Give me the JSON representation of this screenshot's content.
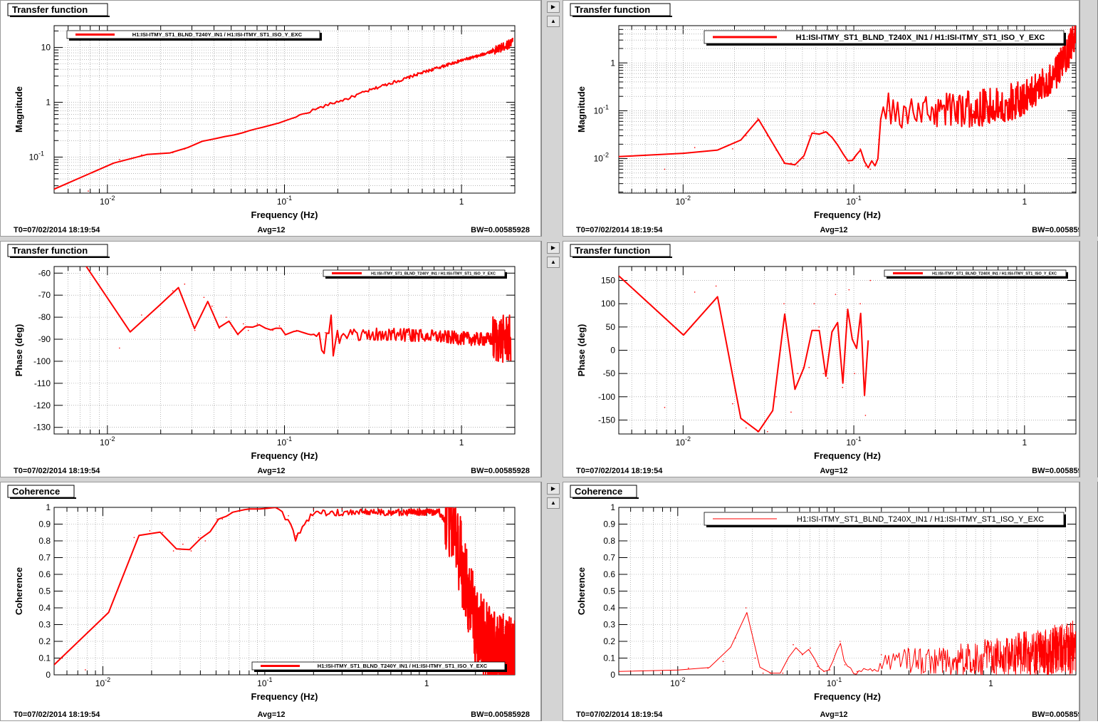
{
  "footer": {
    "t0": "T0=07/02/2014 18:19:54",
    "avg": "Avg=12",
    "bw": "BW=0.00585928"
  },
  "controls": {
    "up_arrow": "▲",
    "right_arrow": "▶"
  },
  "colors": {
    "trace": "#ff0000",
    "grid": "#8a8a8a",
    "background": "#ffffff",
    "divider": "#d4d4d4"
  },
  "panels": [
    {
      "id": "mag-left",
      "title": "Transfer function",
      "xlabel": "Frequency (Hz)",
      "ylabel": "Magnitude",
      "legend": "H1:ISI-ITMY_ST1_BLND_T240Y_IN1 / H1:ISI-ITMY_ST1_ISO_Y_EXC",
      "legend_size": "small",
      "legend_pos": "top-left",
      "xlog": true,
      "ylog": true,
      "xlim": [
        0.005,
        2.0
      ],
      "ylim": [
        0.022,
        25
      ],
      "xticks": [
        {
          "v": 0.01,
          "b": "10",
          "e": "-2"
        },
        {
          "v": 0.1,
          "b": "10",
          "e": "-1"
        },
        {
          "v": 1,
          "b": "1",
          "e": ""
        }
      ],
      "yticks": [
        {
          "v": 0.1,
          "b": "10",
          "e": "-1"
        },
        {
          "v": 1,
          "b": "1",
          "e": ""
        },
        {
          "v": 10,
          "b": "10",
          "e": ""
        }
      ],
      "lw": 2
    },
    {
      "id": "mag-right",
      "title": "Transfer function",
      "xlabel": "Frequency (Hz)",
      "ylabel": "Magnitude",
      "legend": "H1:ISI-ITMY_ST1_BLND_T240X_IN1 / H1:ISI-ITMY_ST1_ISO_Y_EXC",
      "legend_size": "normal",
      "legend_pos": "top-right",
      "xlog": true,
      "ylog": true,
      "xlim": [
        0.0042,
        2.0
      ],
      "ylim": [
        0.0019,
        6
      ],
      "xticks": [
        {
          "v": 0.01,
          "b": "10",
          "e": "-2"
        },
        {
          "v": 0.1,
          "b": "10",
          "e": "-1"
        },
        {
          "v": 1,
          "b": "1",
          "e": ""
        }
      ],
      "yticks": [
        {
          "v": 0.01,
          "b": "10",
          "e": "-2"
        },
        {
          "v": 0.1,
          "b": "10",
          "e": "-1"
        },
        {
          "v": 1,
          "b": "1",
          "e": ""
        }
      ],
      "lw": 2
    },
    {
      "id": "phase-left",
      "title": "Transfer function",
      "xlabel": "Frequency (Hz)",
      "ylabel": "Phase (deg)",
      "legend": "H1:ISI-ITMY_ST1_BLND_T240Y_IN1 / H1:ISI-ITMY_ST1_ISO_Y_EXC",
      "legend_size": "tiny",
      "legend_pos": "top-right",
      "xlog": true,
      "ylog": false,
      "xlim": [
        0.005,
        2.0
      ],
      "ylim": [
        -133,
        -57
      ],
      "xticks": [
        {
          "v": 0.01,
          "b": "10",
          "e": "-2"
        },
        {
          "v": 0.1,
          "b": "10",
          "e": "-1"
        },
        {
          "v": 1,
          "b": "1",
          "e": ""
        }
      ],
      "yticks": [
        {
          "v": -130,
          "b": "-130",
          "e": ""
        },
        {
          "v": -120,
          "b": "-120",
          "e": ""
        },
        {
          "v": -110,
          "b": "-110",
          "e": ""
        },
        {
          "v": -100,
          "b": "-100",
          "e": ""
        },
        {
          "v": -90,
          "b": "-90",
          "e": ""
        },
        {
          "v": -80,
          "b": "-80",
          "e": ""
        },
        {
          "v": -70,
          "b": "-70",
          "e": ""
        },
        {
          "v": -60,
          "b": "-60",
          "e": ""
        }
      ],
      "lw": 2
    },
    {
      "id": "phase-right",
      "title": "Transfer function",
      "xlabel": "Frequency (Hz)",
      "ylabel": "Phase (deg)",
      "legend": "H1:ISI-ITMY_ST1_BLND_T240X_IN1 / H1:ISI-ITMY_ST1_ISO_Y_EXC",
      "legend_size": "tiny",
      "legend_pos": "top-right",
      "xlog": true,
      "ylog": false,
      "xlim": [
        0.0042,
        2.0
      ],
      "ylim": [
        -180,
        180
      ],
      "xticks": [
        {
          "v": 0.01,
          "b": "10",
          "e": "-2"
        },
        {
          "v": 0.1,
          "b": "10",
          "e": "-1"
        },
        {
          "v": 1,
          "b": "1",
          "e": ""
        }
      ],
      "yticks": [
        {
          "v": -150,
          "b": "-150",
          "e": ""
        },
        {
          "v": -100,
          "b": "-100",
          "e": ""
        },
        {
          "v": -50,
          "b": "-50",
          "e": ""
        },
        {
          "v": 0,
          "b": "0",
          "e": ""
        },
        {
          "v": 50,
          "b": "50",
          "e": ""
        },
        {
          "v": 100,
          "b": "100",
          "e": ""
        },
        {
          "v": 150,
          "b": "150",
          "e": ""
        }
      ],
      "lw": 2
    },
    {
      "id": "coh-left",
      "title": "Coherence",
      "xlabel": "Frequency (Hz)",
      "ylabel": "Coherence",
      "legend": "H1:ISI-ITMY_ST1_BLND_T240Y_IN1 / H1:ISI-ITMY_ST1_ISO_Y_EXC",
      "legend_size": "small",
      "legend_pos": "bottom-right",
      "xlog": true,
      "ylog": false,
      "xlim": [
        0.005,
        3.5
      ],
      "ylim": [
        0,
        1
      ],
      "xticks": [
        {
          "v": 0.01,
          "b": "10",
          "e": "-2"
        },
        {
          "v": 0.1,
          "b": "10",
          "e": "-1"
        },
        {
          "v": 1,
          "b": "1",
          "e": ""
        }
      ],
      "yticks": [
        {
          "v": 0,
          "b": "0",
          "e": ""
        },
        {
          "v": 0.1,
          "b": "0.1",
          "e": ""
        },
        {
          "v": 0.2,
          "b": "0.2",
          "e": ""
        },
        {
          "v": 0.3,
          "b": "0.3",
          "e": ""
        },
        {
          "v": 0.4,
          "b": "0.4",
          "e": ""
        },
        {
          "v": 0.5,
          "b": "0.5",
          "e": ""
        },
        {
          "v": 0.6,
          "b": "0.6",
          "e": ""
        },
        {
          "v": 0.7,
          "b": "0.7",
          "e": ""
        },
        {
          "v": 0.8,
          "b": "0.8",
          "e": ""
        },
        {
          "v": 0.9,
          "b": "0.9",
          "e": ""
        },
        {
          "v": 1,
          "b": "1",
          "e": ""
        }
      ],
      "lw": 2
    },
    {
      "id": "coh-right",
      "title": "Coherence",
      "xlabel": "Frequency (Hz)",
      "ylabel": "Coherence",
      "legend": "H1:ISI-ITMY_ST1_BLND_T240X_IN1 / H1:ISI-ITMY_ST1_ISO_Y_EXC",
      "legend_size": "normal",
      "legend_pos": "top-right",
      "xlog": true,
      "ylog": false,
      "xlim": [
        0.0042,
        3.5
      ],
      "ylim": [
        0,
        1
      ],
      "xticks": [
        {
          "v": 0.01,
          "b": "10",
          "e": "-2"
        },
        {
          "v": 0.1,
          "b": "10",
          "e": "-1"
        },
        {
          "v": 1,
          "b": "1",
          "e": ""
        }
      ],
      "yticks": [
        {
          "v": 0,
          "b": "0",
          "e": ""
        },
        {
          "v": 0.1,
          "b": "0.1",
          "e": ""
        },
        {
          "v": 0.2,
          "b": "0.2",
          "e": ""
        },
        {
          "v": 0.3,
          "b": "0.3",
          "e": ""
        },
        {
          "v": 0.4,
          "b": "0.4",
          "e": ""
        },
        {
          "v": 0.5,
          "b": "0.5",
          "e": ""
        },
        {
          "v": 0.6,
          "b": "0.6",
          "e": ""
        },
        {
          "v": 0.7,
          "b": "0.7",
          "e": ""
        },
        {
          "v": 0.8,
          "b": "0.8",
          "e": ""
        },
        {
          "v": 0.9,
          "b": "0.9",
          "e": ""
        },
        {
          "v": 1,
          "b": "1",
          "e": ""
        }
      ],
      "lw": 1
    }
  ],
  "chart_data": [
    {
      "type": "line",
      "title": "Transfer function",
      "xlabel": "Frequency (Hz)",
      "ylabel": "Magnitude",
      "xscale": "log",
      "yscale": "log",
      "xlim": [
        0.005,
        2.0
      ],
      "ylim": [
        0.022,
        25
      ],
      "grid": true,
      "legend_position": "top-left",
      "series": [
        {
          "name": "H1:ISI-ITMY_ST1_BLND_T240Y_IN1 / H1:ISI-ITMY_ST1_ISO_Y_EXC",
          "x": [
            0.005,
            0.0078,
            0.0117,
            0.0156,
            0.0195,
            0.0234,
            0.0273,
            0.0312,
            0.0351,
            0.039,
            0.0469,
            0.0547,
            0.0625,
            0.0781,
            0.0937,
            0.117,
            0.156,
            0.195,
            0.234,
            0.312,
            0.39,
            0.469,
            0.625,
            0.781,
            1.0,
            1.25,
            1.56,
            1.8,
            1.95
          ],
          "y": [
            0.026,
            0.024,
            0.09,
            0.11,
            0.115,
            0.12,
            0.14,
            0.17,
            0.2,
            0.21,
            0.24,
            0.26,
            0.3,
            0.36,
            0.42,
            0.54,
            0.78,
            1.0,
            1.2,
            1.7,
            2.2,
            2.6,
            3.6,
            4.5,
            5.8,
            7.0,
            9.0,
            11.0,
            13.0
          ]
        }
      ]
    },
    {
      "type": "line",
      "title": "Transfer function",
      "xlabel": "Frequency (Hz)",
      "ylabel": "Magnitude",
      "xscale": "log",
      "yscale": "log",
      "xlim": [
        0.0042,
        2.0
      ],
      "ylim": [
        0.0019,
        6
      ],
      "grid": true,
      "legend_position": "top-right",
      "series": [
        {
          "name": "H1:ISI-ITMY_ST1_BLND_T240X_IN1 / H1:ISI-ITMY_ST1_ISO_Y_EXC",
          "x": [
            0.0042,
            0.0078,
            0.0117,
            0.0156,
            0.0195,
            0.0234,
            0.0273,
            0.0312,
            0.0351,
            0.039,
            0.0429,
            0.0469,
            0.0508,
            0.0547,
            0.0586,
            0.0625,
            0.0664,
            0.0703,
            0.0781,
            0.0859,
            0.0937,
            0.101,
            0.109,
            0.117,
            0.125,
            0.14,
            0.16,
            0.2,
            0.3,
            0.4,
            0.5,
            0.6,
            0.8,
            1.0,
            1.2,
            1.5,
            1.8,
            2.0
          ],
          "y": [
            0.011,
            0.006,
            0.017,
            0.015,
            0.016,
            0.03,
            0.07,
            0.03,
            0.015,
            0.008,
            0.008,
            0.007,
            0.01,
            0.03,
            0.037,
            0.032,
            0.038,
            0.035,
            0.022,
            0.013,
            0.008,
            0.01,
            0.016,
            0.007,
            0.006,
            0.025,
            0.1,
            0.08,
            0.1,
            0.12,
            0.1,
            0.12,
            0.15,
            0.18,
            0.3,
            0.5,
            1.5,
            4.0
          ]
        }
      ]
    },
    {
      "type": "line",
      "title": "Transfer function",
      "xlabel": "Frequency (Hz)",
      "ylabel": "Phase (deg)",
      "xscale": "log",
      "yscale": "linear",
      "xlim": [
        0.005,
        2.0
      ],
      "ylim": [
        -133,
        -57
      ],
      "grid": true,
      "legend_position": "top-right",
      "series": [
        {
          "name": "H1:ISI-ITMY_ST1_BLND_T240Y_IN1 / H1:ISI-ITMY_ST1_ISO_Y_EXC",
          "x": [
            0.0076,
            0.0117,
            0.0156,
            0.0195,
            0.0234,
            0.0273,
            0.0312,
            0.0351,
            0.039,
            0.0429,
            0.0469,
            0.0508,
            0.0547,
            0.0586,
            0.0625,
            0.0703,
            0.0781,
            0.0859,
            0.0937,
            0.101,
            0.117,
            0.14,
            0.17,
            0.2,
            0.3,
            0.5,
            0.8,
            1.2,
            1.6,
            1.9
          ],
          "y": [
            -57,
            -94,
            -79,
            -75,
            -68,
            -65,
            -86,
            -71,
            -75,
            -85,
            -80,
            -84,
            -88,
            -83,
            -86,
            -83,
            -85,
            -86,
            -84,
            -88,
            -86,
            -88,
            -87,
            -89,
            -88,
            -88,
            -89,
            -90,
            -90,
            -90
          ]
        }
      ]
    },
    {
      "type": "line",
      "title": "Transfer function",
      "xlabel": "Frequency (Hz)",
      "ylabel": "Phase (deg)",
      "xscale": "log",
      "yscale": "linear",
      "xlim": [
        0.0042,
        2.0
      ],
      "ylim": [
        -180,
        180
      ],
      "grid": true,
      "legend_position": "top-right",
      "series": [
        {
          "name": "H1:ISI-ITMY_ST1_BLND_T240X_IN1 / H1:ISI-ITMY_ST1_ISO_Y_EXC",
          "x": [
            0.0042,
            0.0078,
            0.0117,
            0.0156,
            0.0195,
            0.0234,
            0.0273,
            0.0312,
            0.0351,
            0.039,
            0.0429,
            0.0469,
            0.0508,
            0.0547,
            0.0586,
            0.0625,
            0.0664,
            0.0703,
            0.0781,
            0.0859,
            0.0937,
            0.101,
            0.109,
            0.117,
            0.125
          ],
          "y": [
            160,
            -123,
            125,
            138,
            -115,
            -167,
            -175,
            -175,
            -100,
            100,
            -133,
            -50,
            -37,
            -37,
            100,
            50,
            -50,
            -60,
            120,
            -80,
            130,
            -50,
            100,
            -140,
            150
          ]
        }
      ]
    },
    {
      "type": "line",
      "title": "Coherence",
      "xlabel": "Frequency (Hz)",
      "ylabel": "Coherence",
      "xscale": "log",
      "yscale": "linear",
      "xlim": [
        0.005,
        3.5
      ],
      "ylim": [
        0,
        1
      ],
      "grid": true,
      "legend_position": "bottom-right",
      "series": [
        {
          "name": "H1:ISI-ITMY_ST1_BLND_T240Y_IN1 / H1:ISI-ITMY_ST1_ISO_Y_EXC",
          "x": [
            0.005,
            0.0078,
            0.0117,
            0.0156,
            0.0195,
            0.0234,
            0.0273,
            0.0312,
            0.0351,
            0.039,
            0.0429,
            0.0469,
            0.0508,
            0.0547,
            0.0625,
            0.0781,
            0.0937,
            0.117,
            0.14,
            0.156,
            0.2,
            0.3,
            0.5,
            0.8,
            1.2,
            1.5,
            1.7,
            2.0,
            2.5,
            3.0,
            3.5
          ],
          "y": [
            0.06,
            0.03,
            0.45,
            0.82,
            0.86,
            0.85,
            0.74,
            0.78,
            0.74,
            0.82,
            0.8,
            0.87,
            0.93,
            0.93,
            0.97,
            0.99,
            0.99,
            1.0,
            0.95,
            0.83,
            0.99,
            0.99,
            0.99,
            0.99,
            0.99,
            0.85,
            0.6,
            0.3,
            0.15,
            0.12,
            0.08
          ]
        }
      ]
    },
    {
      "type": "line",
      "title": "Coherence",
      "xlabel": "Frequency (Hz)",
      "ylabel": "Coherence",
      "xscale": "log",
      "yscale": "linear",
      "xlim": [
        0.0042,
        3.5
      ],
      "ylim": [
        0,
        1
      ],
      "grid": true,
      "legend_position": "top-right",
      "series": [
        {
          "name": "H1:ISI-ITMY_ST1_BLND_T240X_IN1 / H1:ISI-ITMY_ST1_ISO_Y_EXC",
          "x": [
            0.0042,
            0.0078,
            0.0117,
            0.0156,
            0.0195,
            0.0234,
            0.0273,
            0.0312,
            0.0351,
            0.039,
            0.0469,
            0.0547,
            0.0625,
            0.0703,
            0.0781,
            0.0859,
            0.0937,
            0.109,
            0.117,
            0.14,
            0.2,
            0.3,
            0.5,
            1.0,
            2.0,
            3.5
          ],
          "y": [
            0.02,
            0.01,
            0.04,
            0.04,
            0.08,
            0.22,
            0.4,
            0.1,
            0.01,
            0.01,
            0.01,
            0.18,
            0.12,
            0.16,
            0.05,
            0.02,
            0.03,
            0.2,
            0.06,
            0.02,
            0.12,
            0.15,
            0.15,
            0.2,
            0.25,
            0.3
          ]
        }
      ]
    }
  ]
}
